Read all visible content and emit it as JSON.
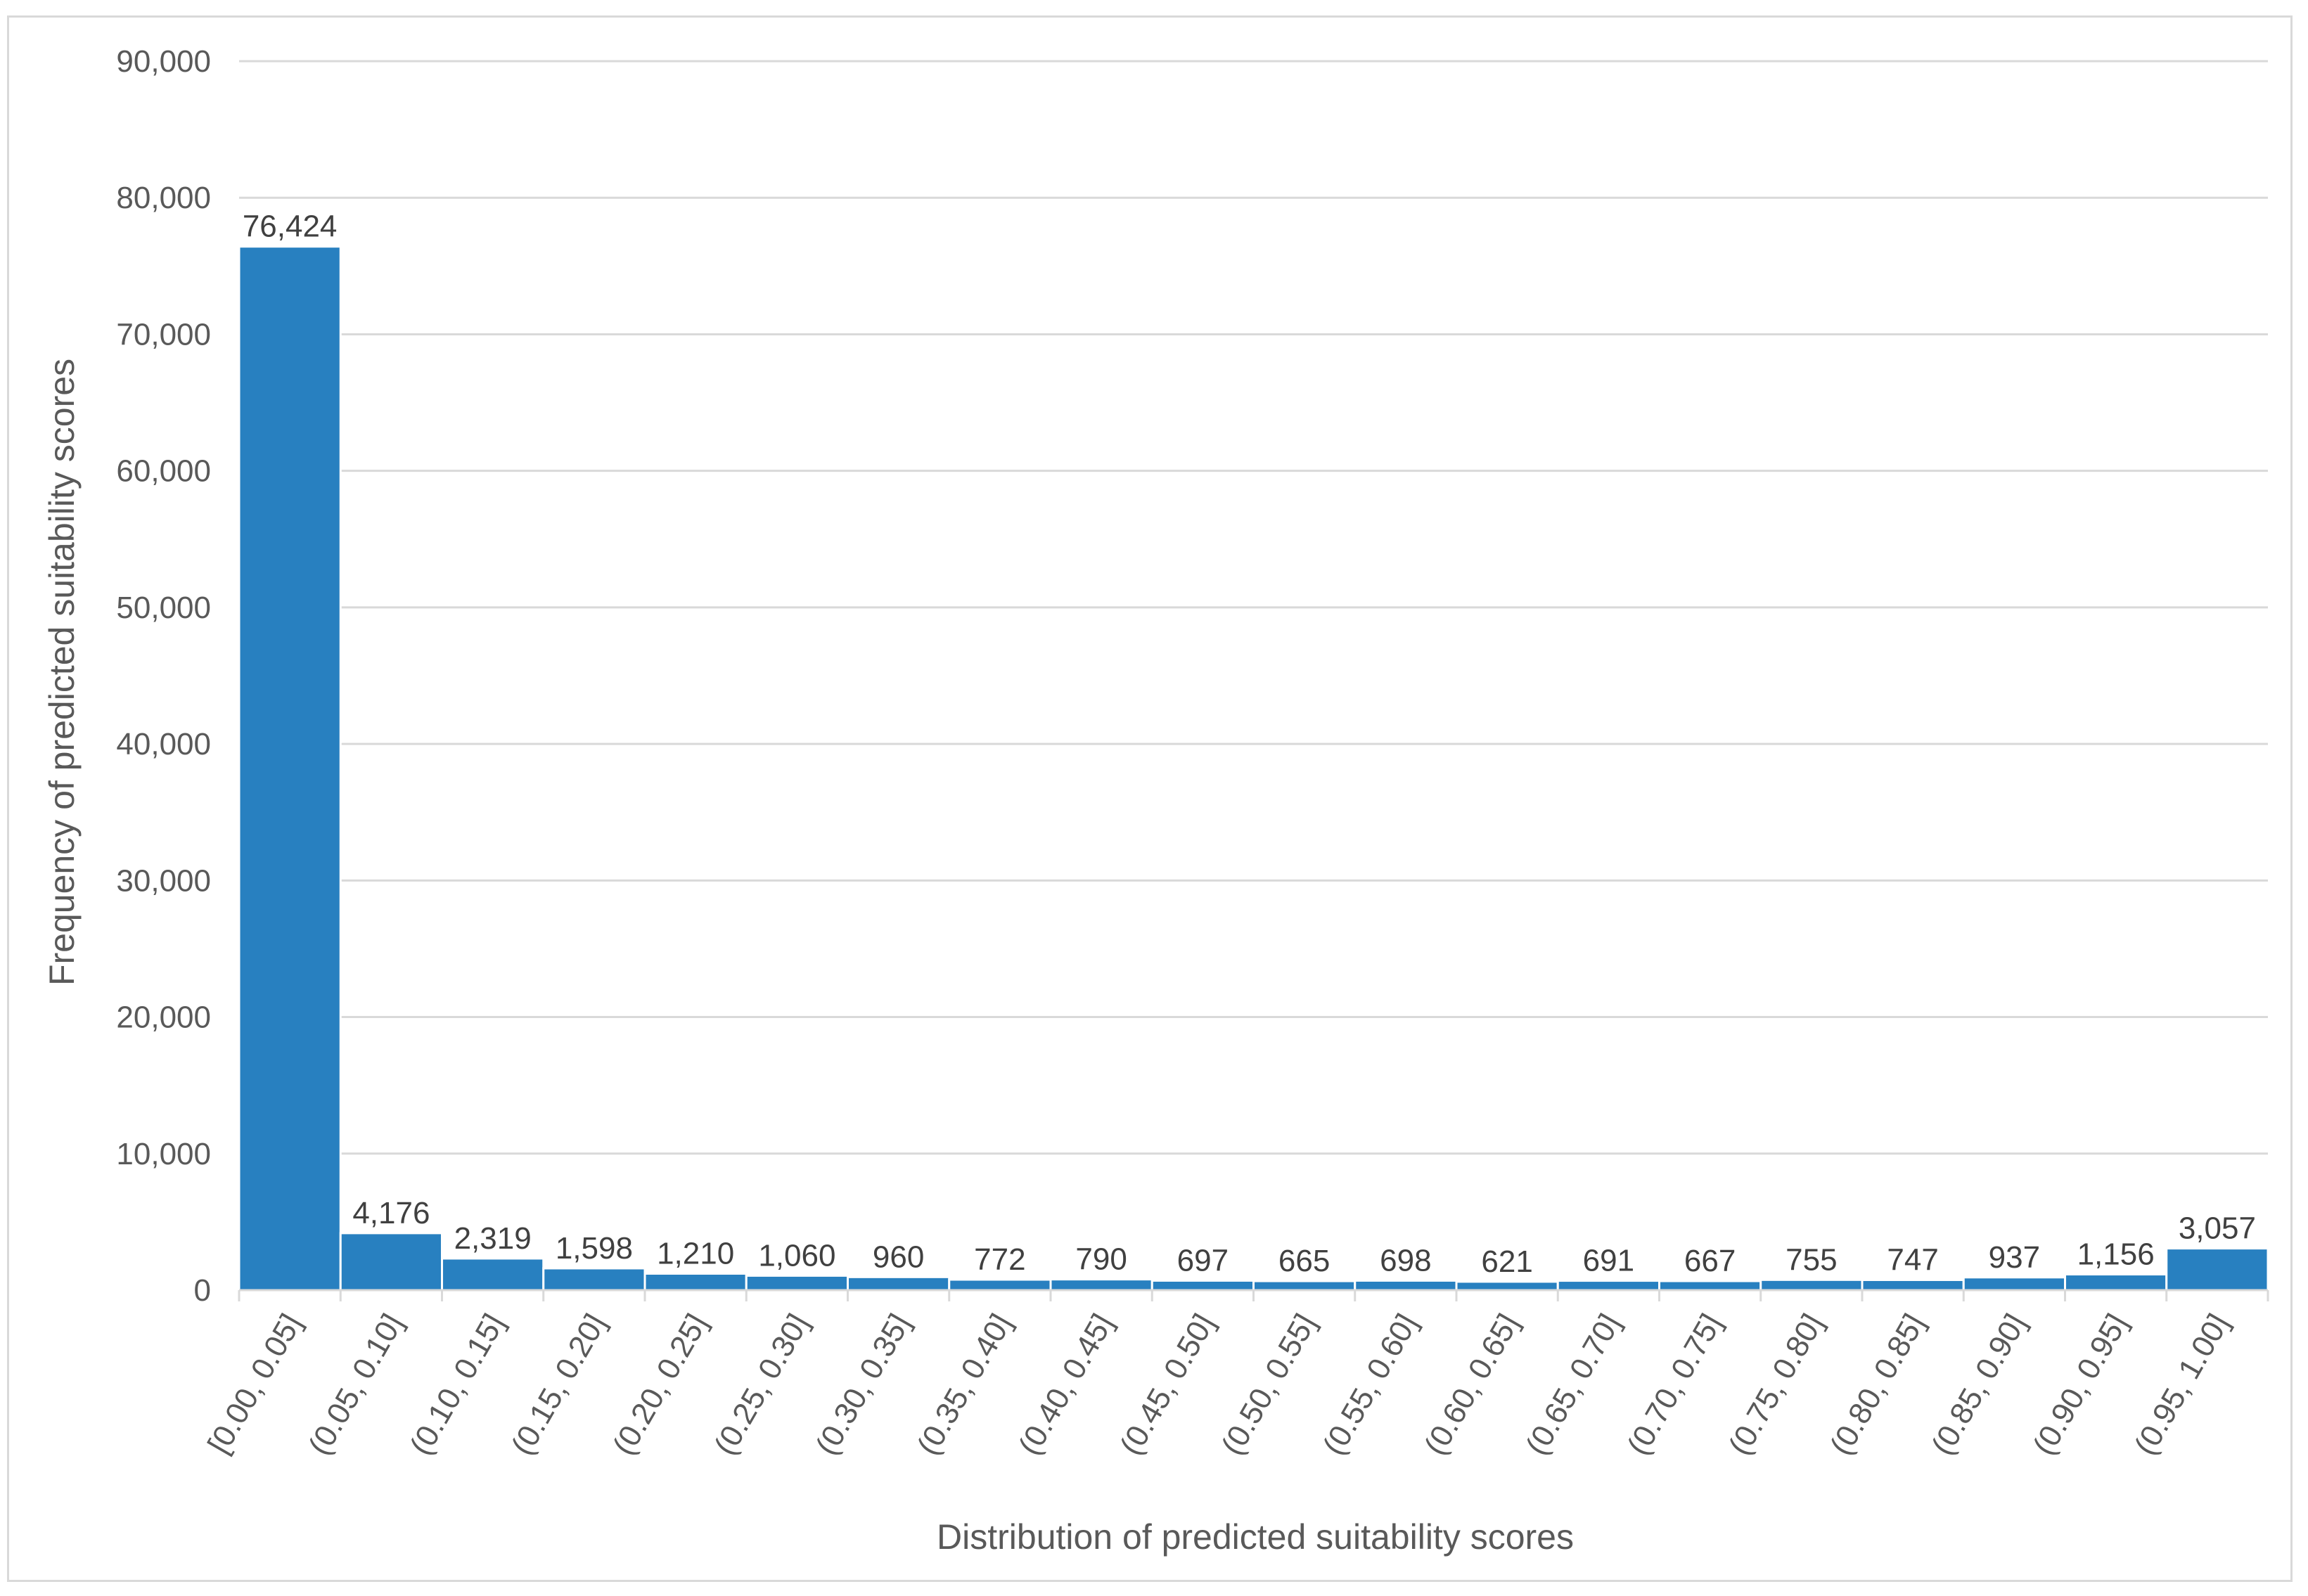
{
  "chart_data": {
    "type": "bar",
    "title": "",
    "xlabel": "Distribution of predicted suitability scores",
    "ylabel": "Frequency of predicted suitability scores",
    "ylim": [
      0,
      90000
    ],
    "yticks": [
      "0",
      "10,000",
      "20,000",
      "30,000",
      "40,000",
      "50,000",
      "60,000",
      "70,000",
      "80,000",
      "90,000"
    ],
    "ytick_values": [
      0,
      10000,
      20000,
      30000,
      40000,
      50000,
      60000,
      70000,
      80000,
      90000
    ],
    "grid": true,
    "legend": "none",
    "bar_color": "#2880C0",
    "categories": [
      "[0.00, 0.05]",
      "(0.05, 0.10]",
      "(0.10, 0.15]",
      "(0.15, 0.20]",
      "(0.20, 0.25]",
      "(0.25, 0.30]",
      "(0.30, 0.35]",
      "(0.35, 0.40]",
      "(0.40, 0.45]",
      "(0.45, 0.50]",
      "(0.50, 0.55]",
      "(0.55, 0.60]",
      "(0.60, 0.65]",
      "(0.65, 0.70]",
      "(0.70, 0.75]",
      "(0.75, 0.80]",
      "(0.80, 0.85]",
      "(0.85, 0.90]",
      "(0.90, 0.95]",
      "(0.95, 1.00]"
    ],
    "values": [
      76424,
      4176,
      2319,
      1598,
      1210,
      1060,
      960,
      772,
      790,
      697,
      665,
      698,
      621,
      691,
      667,
      755,
      747,
      937,
      1156,
      3057
    ],
    "data_labels": [
      "76,424",
      "4,176",
      "2,319",
      "1,598",
      "1,210",
      "1,060",
      "960",
      "772",
      "790",
      "697",
      "665",
      "698",
      "621",
      "691",
      "667",
      "755",
      "747",
      "937",
      "1,156",
      "3,057"
    ]
  }
}
